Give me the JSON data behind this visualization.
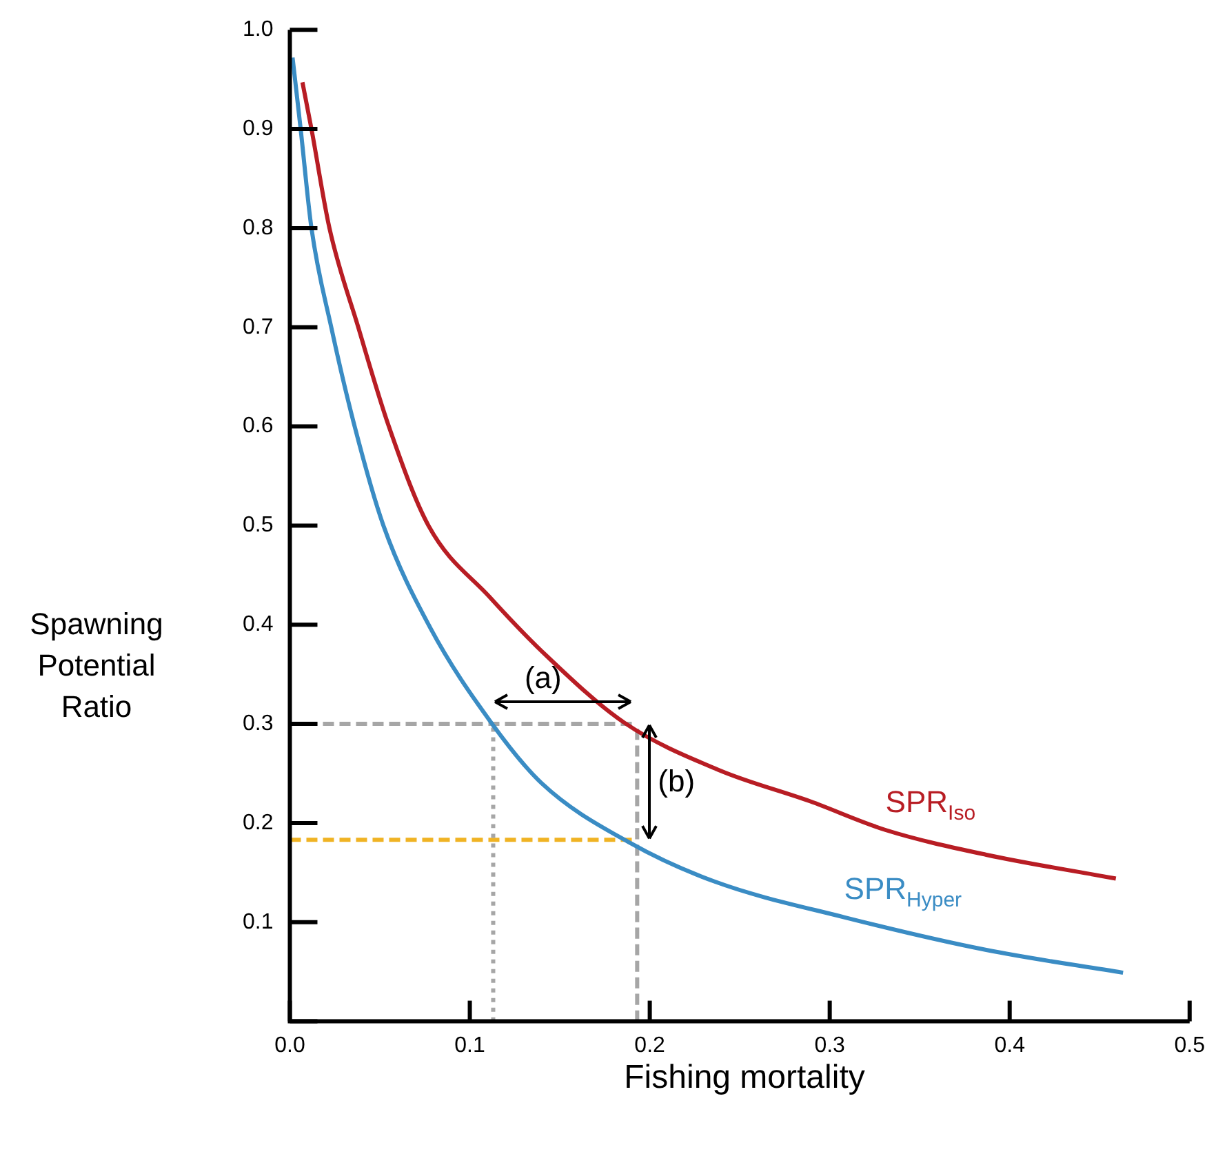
{
  "chart_data": {
    "type": "line",
    "xlabel": "Fishing mortality",
    "ylabel": "Spawning Potential Ratio",
    "xlim": [
      0,
      0.5
    ],
    "ylim": [
      0,
      1
    ],
    "xticks": [
      {
        "value": 0,
        "label": "0.0"
      },
      0.1,
      0.2,
      0.3,
      0.4,
      0.5
    ],
    "yticks": [
      {
        "value": 0,
        "label": null
      },
      0.1,
      0.2,
      0.3,
      0.4,
      0.5,
      0.6,
      0.7,
      0.8,
      0.9,
      {
        "value": 1,
        "label": "1.0"
      }
    ],
    "grid": false,
    "legend": false,
    "marker": "none",
    "annotations": [
      "(a)",
      "(b)"
    ],
    "series": [
      {
        "color": "#a6a6a6",
        "line_style": "dashed",
        "x": [
          0,
          0.19
        ],
        "values": [
          0.3,
          0.3
        ]
      },
      {
        "color": "#a6a6a6",
        "line_style": "dotted",
        "x": [
          0.113,
          0.113
        ],
        "values": [
          0,
          0.3
        ]
      },
      {
        "color": "#a6a6a6",
        "line_style": "dashed",
        "x": [
          0.193,
          0.193
        ],
        "values": [
          0,
          0.3
        ]
      },
      {
        "color": "#f0b323",
        "line_style": "dashed",
        "x": [
          0,
          0.193
        ],
        "values": [
          0.183,
          0.183
        ]
      },
      {
        "name": "SPR$_{Iso}$",
        "color": "#b81d24",
        "line_style": "solid",
        "x": [
          0.007,
          0.012,
          0.022,
          0.038,
          0.055,
          0.077,
          0.111,
          0.143,
          0.186,
          0.239,
          0.289,
          0.331,
          0.387,
          0.459
        ],
        "values": [
          0.947,
          0.9,
          0.8,
          0.7,
          0.6,
          0.5,
          0.428,
          0.368,
          0.301,
          0.253,
          0.222,
          0.193,
          0.168,
          0.144
        ]
      },
      {
        "name": "SPR$_{Hyper}$",
        "color": "#3a8cc4",
        "line_style": "solid",
        "x": [
          0.0015,
          0.006,
          0.012,
          0.023,
          0.036,
          0.052,
          0.078,
          0.112,
          0.14,
          0.189,
          0.236,
          0.308,
          0.387,
          0.463
        ],
        "values": [
          0.972,
          0.9,
          0.8,
          0.7,
          0.6,
          0.5,
          0.397,
          0.301,
          0.24,
          0.18,
          0.141,
          0.105,
          0.072,
          0.049
        ]
      }
    ]
  }
}
